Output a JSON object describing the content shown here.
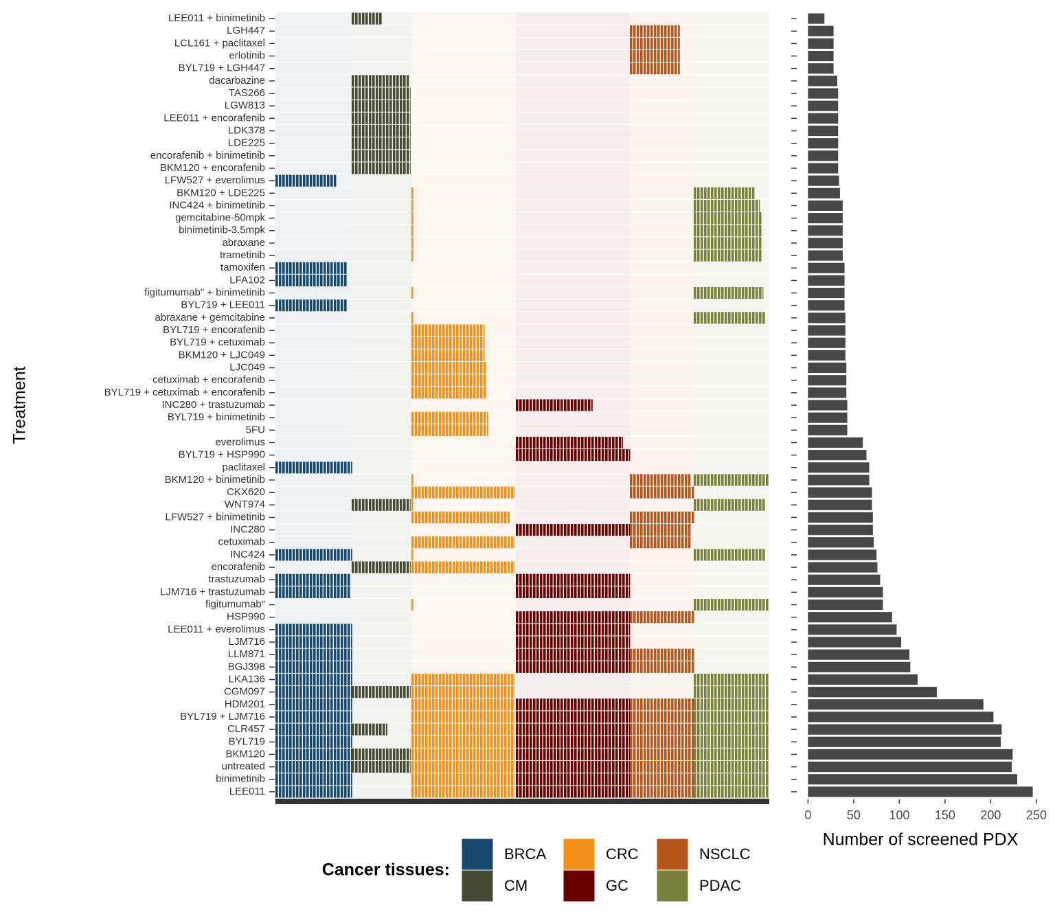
{
  "chart_data": [
    {
      "type": "heatmap",
      "y_label": "Treatment",
      "legend_title": "Cancer tissues:",
      "categories": [
        "LEE011 + binimetinib",
        "LGH447",
        "LCL161 + paclitaxel",
        "erlotinib",
        "BYL719 + LGH447",
        "dacarbazine",
        "TAS266",
        "LGW813",
        "LEE011 + encorafenib",
        "LDK378",
        "LDE225",
        "encorafenib + binimetinib",
        "BKM120 + encorafenib",
        "LFW527 + everolimus",
        "BKM120 + LDE225",
        "INC424 + binimetinib",
        "gemcitabine-50mpk",
        "binimetinib-3.5mpk",
        "abraxane",
        "trametinib",
        "tamoxifen",
        "LFA102",
        "figitumumab\" + binimetinib",
        "BYL719 + LEE011",
        "abraxane + gemcitabine",
        "BYL719 + encorafenib",
        "BYL719 + cetuximab",
        "BKM120 + LJC049",
        "LJC049",
        "cetuximab + encorafenib",
        "BYL719 + cetuximab + encorafenib",
        "INC280 + trastuzumab",
        "BYL719 + binimetinib",
        "5FU",
        "everolimus",
        "BYL719 + HSP990",
        "paclitaxel",
        "BKM120 + binimetinib",
        "CKX620",
        "WNT974",
        "LFW527 + binimetinib",
        "INC280",
        "cetuximab",
        "INC424",
        "encorafenib",
        "trastuzumab",
        "LJM716 + trastuzumab",
        "figitumumab\"",
        "HSP990",
        "LEE011 + everolimus",
        "LJM716",
        "LLM871",
        "BGJ398",
        "LKA136",
        "CGM097",
        "HDM201",
        "BYL719 + LJM716",
        "CLR457",
        "BYL719",
        "BKM120",
        "untreated",
        "binimetinib",
        "LEE011"
      ],
      "series": [
        {
          "name": "BRCA",
          "color": "#17486e",
          "values": [
            null,
            null,
            null,
            null,
            null,
            null,
            null,
            null,
            null,
            null,
            null,
            null,
            null,
            34,
            null,
            null,
            null,
            null,
            null,
            null,
            40,
            40,
            null,
            40,
            null,
            null,
            null,
            null,
            null,
            null,
            null,
            null,
            null,
            null,
            null,
            null,
            43,
            null,
            null,
            null,
            null,
            null,
            null,
            43,
            null,
            42,
            42,
            null,
            null,
            43,
            43,
            43,
            43,
            43,
            43,
            43,
            43,
            43,
            43,
            43,
            43,
            43,
            43
          ]
        },
        {
          "name": "CM",
          "color": "#474a33",
          "values": [
            17,
            null,
            null,
            null,
            null,
            32,
            33,
            33,
            33,
            33,
            33,
            33,
            33,
            null,
            null,
            null,
            null,
            null,
            null,
            null,
            null,
            null,
            null,
            null,
            null,
            null,
            null,
            null,
            null,
            null,
            null,
            null,
            null,
            null,
            null,
            null,
            null,
            null,
            null,
            33,
            null,
            null,
            null,
            null,
            33,
            null,
            null,
            null,
            null,
            null,
            null,
            null,
            null,
            null,
            33,
            null,
            null,
            20,
            null,
            33,
            33,
            null,
            null
          ]
        },
        {
          "name": "CRC",
          "color": "#f39019",
          "values": [
            null,
            null,
            null,
            null,
            null,
            null,
            null,
            null,
            null,
            null,
            null,
            null,
            null,
            null,
            1,
            1,
            1,
            1,
            1,
            1,
            null,
            null,
            1,
            null,
            1,
            41,
            41,
            41,
            42,
            42,
            42,
            null,
            43,
            43,
            null,
            null,
            null,
            1,
            58,
            1,
            55,
            null,
            58,
            1,
            58,
            null,
            null,
            1,
            null,
            null,
            null,
            null,
            null,
            58,
            58,
            58,
            58,
            58,
            58,
            58,
            58,
            58,
            58
          ]
        },
        {
          "name": "GC",
          "color": "#6b0000",
          "values": [
            null,
            null,
            null,
            null,
            null,
            null,
            null,
            null,
            null,
            null,
            null,
            null,
            null,
            null,
            null,
            null,
            null,
            null,
            null,
            null,
            null,
            null,
            null,
            null,
            null,
            null,
            null,
            null,
            null,
            null,
            null,
            43,
            null,
            null,
            60,
            64,
            null,
            null,
            null,
            null,
            null,
            64,
            null,
            null,
            null,
            64,
            64,
            null,
            64,
            64,
            64,
            64,
            64,
            null,
            null,
            64,
            64,
            64,
            64,
            64,
            64,
            64,
            64
          ]
        },
        {
          "name": "NSCLC",
          "color": "#b5561b",
          "values": [
            null,
            28,
            28,
            28,
            28,
            null,
            null,
            null,
            null,
            null,
            null,
            null,
            null,
            null,
            null,
            null,
            null,
            null,
            null,
            null,
            null,
            null,
            null,
            null,
            null,
            null,
            null,
            null,
            null,
            null,
            null,
            null,
            null,
            null,
            null,
            null,
            null,
            34,
            36,
            null,
            36,
            34,
            34,
            null,
            null,
            null,
            null,
            null,
            36,
            null,
            null,
            36,
            36,
            null,
            null,
            36,
            36,
            36,
            36,
            36,
            36,
            36,
            36
          ]
        },
        {
          "name": "PDAC",
          "color": "#7a823a",
          "values": [
            null,
            null,
            null,
            null,
            null,
            null,
            null,
            null,
            null,
            null,
            null,
            null,
            null,
            null,
            34,
            37,
            38,
            38,
            38,
            38,
            null,
            null,
            39,
            null,
            40,
            null,
            null,
            null,
            null,
            null,
            null,
            null,
            null,
            null,
            null,
            null,
            null,
            42,
            null,
            40,
            null,
            null,
            null,
            40,
            null,
            null,
            null,
            42,
            null,
            null,
            null,
            null,
            null,
            42,
            42,
            42,
            42,
            42,
            42,
            42,
            42,
            42,
            42
          ]
        }
      ]
    },
    {
      "type": "hbar",
      "x_label": "Number of screened PDX",
      "color": "#474747",
      "values": [
        18,
        28,
        28,
        28,
        28,
        32,
        33,
        33,
        33,
        33,
        33,
        33,
        33,
        34,
        35,
        38,
        38,
        38,
        38,
        38,
        40,
        40,
        40,
        40,
        41,
        41,
        41,
        41,
        42,
        42,
        42,
        43,
        43,
        43,
        60,
        64,
        67,
        67,
        70,
        70,
        71,
        71,
        72,
        75,
        76,
        79,
        82,
        82,
        92,
        97,
        102,
        111,
        112,
        120,
        141,
        192,
        203,
        212,
        211,
        224,
        223,
        229,
        246
      ],
      "xlim": [
        -12.3,
        258.3
      ],
      "xticks": [
        0,
        50,
        100,
        150,
        200,
        250
      ]
    }
  ]
}
